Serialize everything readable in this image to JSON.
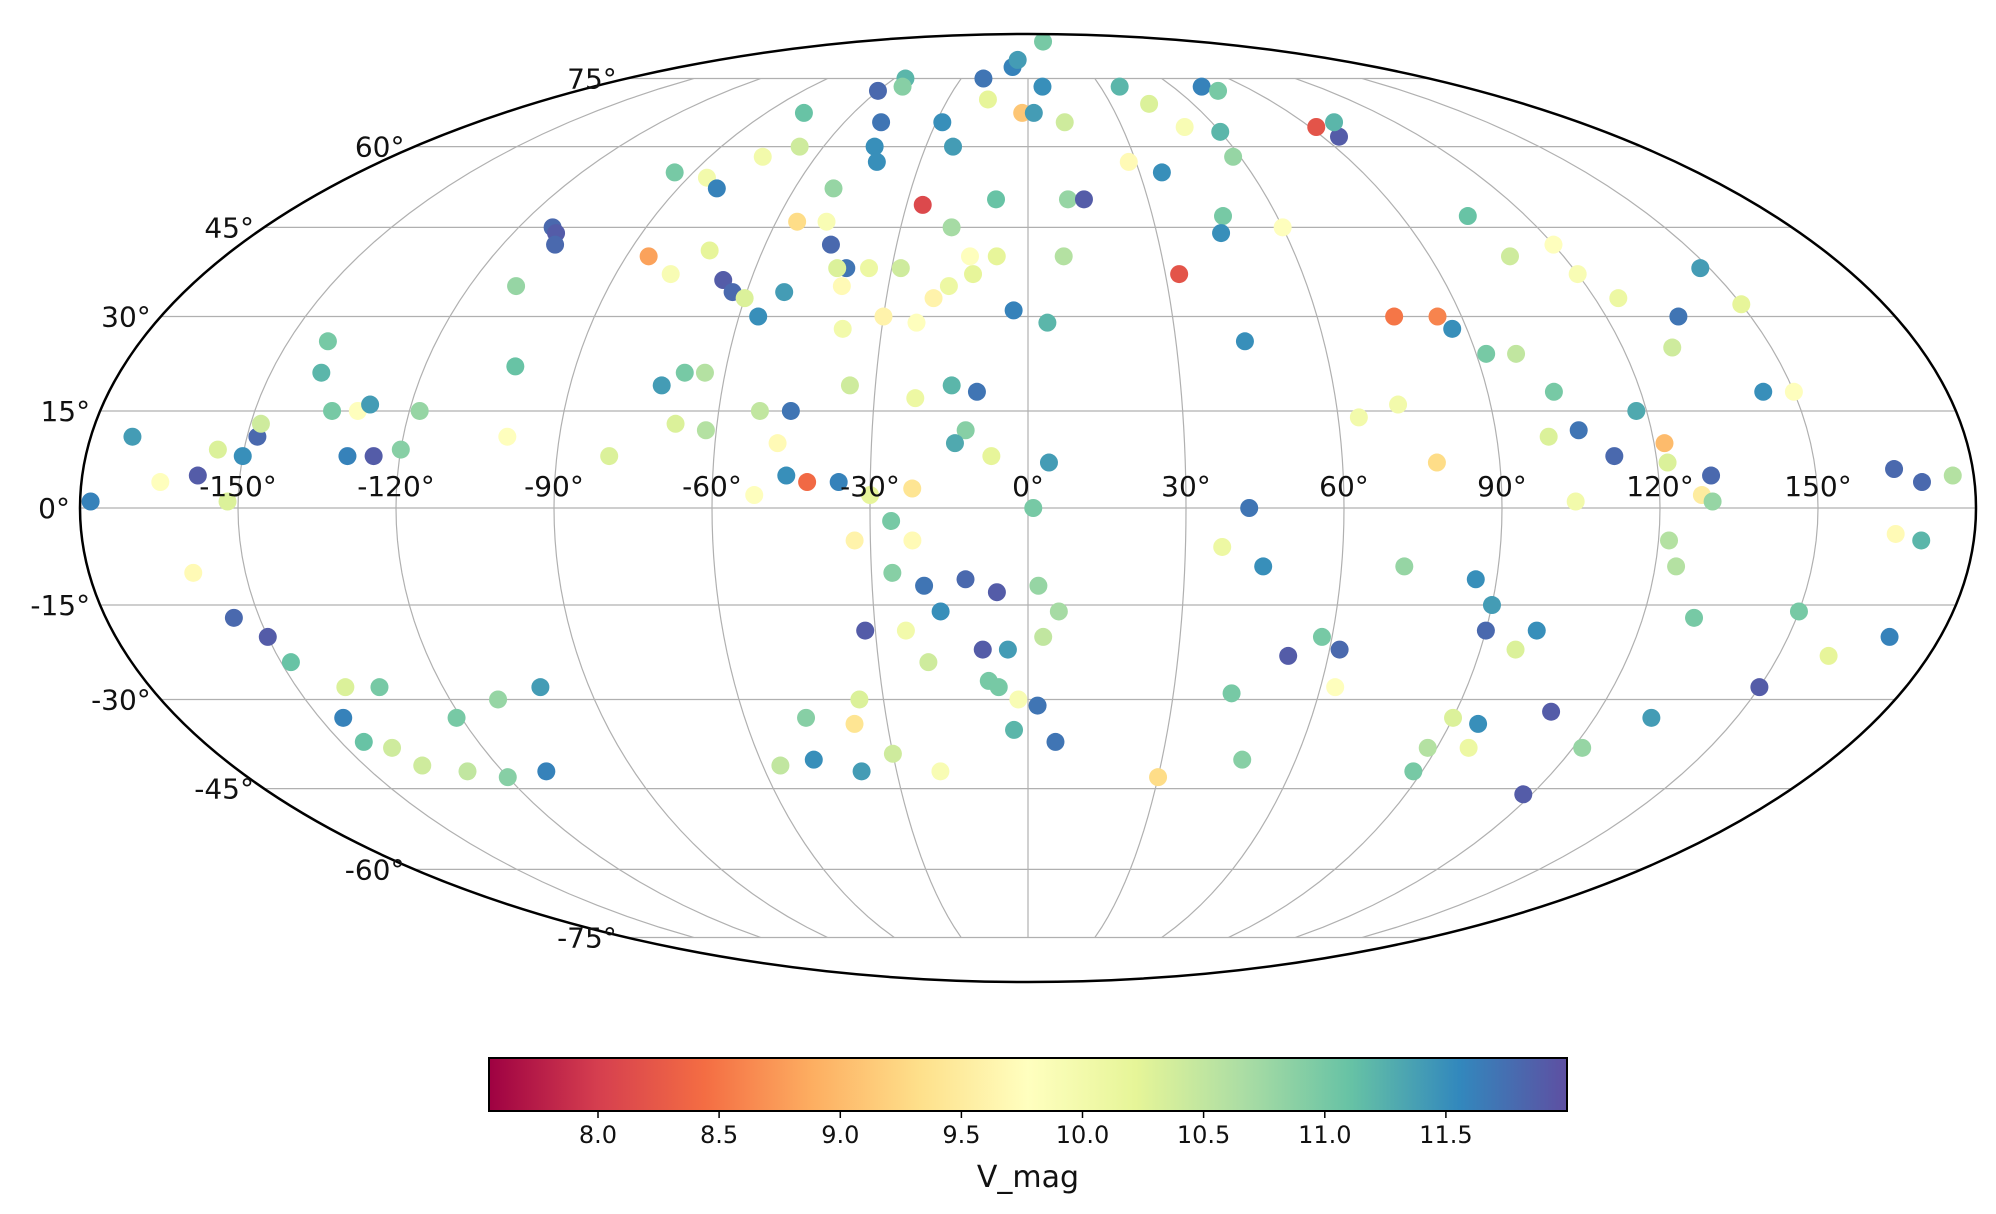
{
  "chart_data": {
    "type": "scatter",
    "projection": "mollweide",
    "title": "",
    "xlabel": "",
    "ylabel": "",
    "grid": true,
    "xlim": [
      -180,
      180
    ],
    "ylim": [
      -90,
      90
    ],
    "lon_tick_values": [
      -150,
      -120,
      -90,
      -60,
      -30,
      0,
      30,
      60,
      90,
      120,
      150
    ],
    "lon_tick_labels": [
      "-150°",
      "-120°",
      "-90°",
      "-60°",
      "-30°",
      "0°",
      "30°",
      "60°",
      "90°",
      "120°",
      "150°"
    ],
    "lat_tick_values": [
      75,
      60,
      45,
      30,
      15,
      0,
      -15,
      -30,
      -45,
      -60,
      -75
    ],
    "lat_tick_labels": [
      "75°",
      "60°",
      "45°",
      "30°",
      "15°",
      "0°",
      "-15°",
      "-30°",
      "-45°",
      "-60°",
      "-75°"
    ],
    "colormap": "Spectral",
    "colorbar": {
      "label": "V_mag",
      "range": [
        7.55,
        12.0
      ],
      "tick_values": [
        8.0,
        8.5,
        9.0,
        9.5,
        10.0,
        10.5,
        11.0,
        11.5
      ],
      "tick_labels": [
        "8.0",
        "8.5",
        "9.0",
        "9.5",
        "10.0",
        "10.5",
        "11.0",
        "11.5"
      ],
      "stops": [
        "#9e0142",
        "#d53e4f",
        "#f46d43",
        "#fdae61",
        "#fee08b",
        "#ffffbf",
        "#e6f598",
        "#abdda4",
        "#66c2a5",
        "#3288bd",
        "#5e4fa2"
      ]
    },
    "points": [
      [
        -178,
        1,
        11.6
      ],
      [
        -172,
        11,
        11.4
      ],
      [
        -165,
        4,
        9.8
      ],
      [
        -158,
        5,
        11.9
      ],
      [
        -152,
        1,
        10.3
      ],
      [
        -148,
        11,
        11.8
      ],
      [
        -142,
        26,
        11.0
      ],
      [
        -140,
        21,
        11.2
      ],
      [
        -135,
        15,
        11.0
      ],
      [
        -155,
        9,
        10.3
      ],
      [
        -150,
        8,
        11.5
      ],
      [
        -148,
        13,
        10.4
      ],
      [
        -130,
        8,
        11.6
      ],
      [
        -125,
        8,
        11.9
      ],
      [
        -120,
        9,
        10.9
      ],
      [
        -160,
        -10,
        9.7
      ],
      [
        -155,
        -17,
        11.8
      ],
      [
        -150,
        -20,
        11.9
      ],
      [
        -148,
        -24,
        11.1
      ],
      [
        -140,
        -28,
        10.3
      ],
      [
        -133,
        -28,
        11.0
      ],
      [
        -145,
        -33,
        11.6
      ],
      [
        -140,
        -38,
        10.4
      ],
      [
        -121,
        -33,
        11.0
      ],
      [
        -145,
        -37,
        11.1
      ],
      [
        -137,
        -41,
        10.4
      ],
      [
        -128,
        -42,
        10.5
      ],
      [
        -110,
        -30,
        10.8
      ],
      [
        -100,
        -28,
        11.4
      ],
      [
        -110,
        -42,
        11.6
      ],
      [
        -120,
        -43,
        10.9
      ],
      [
        -112,
        45,
        11.8
      ],
      [
        -110,
        44,
        11.9
      ],
      [
        -108,
        42,
        11.8
      ],
      [
        -110,
        35,
        10.8
      ],
      [
        -102,
        22,
        11.1
      ],
      [
        -100,
        11,
        9.8
      ],
      [
        -118,
        15,
        10.8
      ],
      [
        -130,
        15,
        9.8
      ],
      [
        -128,
        16,
        11.4
      ],
      [
        -95,
        55,
        11.0
      ],
      [
        -85,
        54,
        10.0
      ],
      [
        -80,
        52,
        11.6
      ],
      [
        -77,
        67,
        11.1
      ],
      [
        -75,
        58,
        10.0
      ],
      [
        -67,
        60,
        10.4
      ],
      [
        -85,
        40,
        8.8
      ],
      [
        -78,
        37,
        9.9
      ],
      [
        -72,
        41,
        10.2
      ],
      [
        -60,
        72,
        11.8
      ],
      [
        -55,
        75,
        11.2
      ],
      [
        -52,
        73,
        10.9
      ],
      [
        -48,
        65,
        11.7
      ],
      [
        -45,
        60,
        11.5
      ],
      [
        -42,
        57,
        11.5
      ],
      [
        -50,
        52,
        10.8
      ],
      [
        -55,
        46,
        9.3
      ],
      [
        -48,
        46,
        9.9
      ],
      [
        -66,
        36,
        11.9
      ],
      [
        -63,
        34,
        11.8
      ],
      [
        -60,
        33,
        10.3
      ],
      [
        -56,
        30,
        11.5
      ],
      [
        -52,
        34,
        11.4
      ],
      [
        -45,
        42,
        11.8
      ],
      [
        -40,
        38,
        11.7
      ],
      [
        -38,
        28,
        10.0
      ],
      [
        -35,
        19,
        10.4
      ],
      [
        -68,
        21,
        11.0
      ],
      [
        -64,
        21,
        10.6
      ],
      [
        -52,
        15,
        10.5
      ],
      [
        -48,
        10,
        9.7
      ],
      [
        -46,
        15,
        11.7
      ],
      [
        -72,
        19,
        11.4
      ],
      [
        -68,
        13,
        10.3
      ],
      [
        -62,
        12,
        10.6
      ],
      [
        -80,
        8,
        10.3
      ],
      [
        -52,
        2,
        9.8
      ],
      [
        -46,
        5,
        11.5
      ],
      [
        -42,
        4,
        8.4
      ],
      [
        -36,
        4,
        11.6
      ],
      [
        -30,
        2,
        10.2
      ],
      [
        -22,
        17,
        10.1
      ],
      [
        -22,
        3,
        9.4
      ],
      [
        -23,
        29,
        9.8
      ],
      [
        -42,
        38,
        10.3
      ],
      [
        -40,
        35,
        9.7
      ],
      [
        -35,
        38,
        10.1
      ],
      [
        -30,
        30,
        9.6
      ],
      [
        -26,
        49,
        8.1
      ],
      [
        -28,
        38,
        10.4
      ],
      [
        -20,
        33,
        9.6
      ],
      [
        -17,
        35,
        10.1
      ],
      [
        -12,
        37,
        10.2
      ],
      [
        -28,
        65,
        11.5
      ],
      [
        -22,
        60,
        11.4
      ],
      [
        -20,
        75,
        11.7
      ],
      [
        -15,
        70,
        10.2
      ],
      [
        -8,
        78,
        11.6
      ],
      [
        -6,
        80,
        11.4
      ],
      [
        -2,
        67,
        9.1
      ],
      [
        2,
        67,
        11.4
      ],
      [
        6,
        73,
        11.5
      ],
      [
        -8,
        50,
        11.1
      ],
      [
        -18,
        45,
        10.7
      ],
      [
        -13,
        40,
        9.8
      ],
      [
        -7,
        40,
        10.2
      ],
      [
        -3,
        31,
        11.6
      ],
      [
        4,
        29,
        11.2
      ],
      [
        8,
        40,
        10.6
      ],
      [
        10,
        50,
        10.8
      ],
      [
        14,
        50,
        11.9
      ],
      [
        -15,
        19,
        11.2
      ],
      [
        -10,
        18,
        11.7
      ],
      [
        -7,
        8,
        10.2
      ],
      [
        1,
        0,
        11.0
      ],
      [
        4,
        7,
        11.4
      ],
      [
        -12,
        12,
        10.9
      ],
      [
        -14,
        10,
        11.3
      ],
      [
        -26,
        -2,
        11.0
      ],
      [
        -22,
        -5,
        9.7
      ],
      [
        -33,
        -5,
        9.6
      ],
      [
        -26,
        -10,
        10.9
      ],
      [
        -20,
        -12,
        11.7
      ],
      [
        -12,
        -11,
        11.8
      ],
      [
        -6,
        -13,
        11.9
      ],
      [
        2,
        -12,
        10.8
      ],
      [
        3,
        -20,
        10.5
      ],
      [
        -32,
        -19,
        11.9
      ],
      [
        -17,
        -16,
        11.5
      ],
      [
        -9,
        -22,
        11.9
      ],
      [
        -4,
        -22,
        11.4
      ],
      [
        6,
        -16,
        10.7
      ],
      [
        -20,
        -24,
        10.4
      ],
      [
        -24,
        -19,
        10.0
      ],
      [
        -8,
        -27,
        11.0
      ],
      [
        -6,
        -28,
        11.0
      ],
      [
        -2,
        -30,
        9.9
      ],
      [
        2,
        -31,
        11.7
      ],
      [
        -3,
        -35,
        11.2
      ],
      [
        6,
        -37,
        11.7
      ],
      [
        -35,
        -30,
        10.3
      ],
      [
        -47,
        -33,
        10.9
      ],
      [
        -37,
        -34,
        9.4
      ],
      [
        -30,
        -39,
        10.4
      ],
      [
        -56,
        -41,
        10.5
      ],
      [
        -48,
        -40,
        11.5
      ],
      [
        -38,
        -42,
        11.4
      ],
      [
        -20,
        -42,
        9.9
      ],
      [
        30,
        -43,
        9.3
      ],
      [
        12,
        65,
        10.4
      ],
      [
        28,
        57,
        9.7
      ],
      [
        36,
        55,
        11.5
      ],
      [
        50,
        64,
        9.9
      ],
      [
        58,
        58,
        10.8
      ],
      [
        60,
        63,
        11.2
      ],
      [
        47,
        47,
        11.0
      ],
      [
        45,
        44,
        11.5
      ],
      [
        60,
        45,
        9.8
      ],
      [
        16,
        86,
        11.0
      ],
      [
        38,
        73,
        11.2
      ],
      [
        44,
        69,
        10.3
      ],
      [
        72,
        73,
        11.6
      ],
      [
        76,
        72,
        11.0
      ],
      [
        92,
        64,
        8.2
      ],
      [
        95,
        62,
        11.9
      ],
      [
        100,
        65,
        11.2
      ],
      [
        106,
        47,
        11.1
      ],
      [
        33,
        37,
        8.2
      ],
      [
        44,
        26,
        11.5
      ],
      [
        64,
        14,
        10.0
      ],
      [
        76,
        30,
        8.5
      ],
      [
        72,
        16,
        10.0
      ],
      [
        85,
        30,
        8.6
      ],
      [
        87,
        28,
        11.5
      ],
      [
        92,
        24,
        11.0
      ],
      [
        98,
        24,
        10.5
      ],
      [
        78,
        7,
        9.3
      ],
      [
        100,
        11,
        10.3
      ],
      [
        120,
        42,
        9.8
      ],
      [
        125,
        33,
        10.1
      ],
      [
        120,
        37,
        9.9
      ],
      [
        135,
        30,
        11.7
      ],
      [
        130,
        25,
        10.4
      ],
      [
        108,
        40,
        10.4
      ],
      [
        103,
        18,
        11.0
      ],
      [
        106,
        12,
        11.7
      ],
      [
        112,
        8,
        11.8
      ],
      [
        118,
        15,
        11.3
      ],
      [
        122,
        10,
        9.0
      ],
      [
        122,
        7,
        10.3
      ],
      [
        130,
        5,
        11.8
      ],
      [
        148,
        38,
        11.4
      ],
      [
        150,
        32,
        10.2
      ],
      [
        150,
        18,
        9.8
      ],
      [
        144,
        18,
        11.5
      ],
      [
        165,
        6,
        11.8
      ],
      [
        170,
        4,
        11.8
      ],
      [
        176,
        5,
        10.6
      ],
      [
        128,
        2,
        9.5
      ],
      [
        130,
        1,
        10.8
      ],
      [
        104,
        1,
        10.0
      ],
      [
        42,
        0,
        11.7
      ],
      [
        37,
        -6,
        10.1
      ],
      [
        45,
        -9,
        11.5
      ],
      [
        72,
        -9,
        10.8
      ],
      [
        86,
        -11,
        11.5
      ],
      [
        124,
        -9,
        10.6
      ],
      [
        122,
        -5,
        10.6
      ],
      [
        165,
        -4,
        9.7
      ],
      [
        170,
        -5,
        11.2
      ],
      [
        90,
        -15,
        11.4
      ],
      [
        90,
        -19,
        11.8
      ],
      [
        100,
        -19,
        11.5
      ],
      [
        130,
        -17,
        11.0
      ],
      [
        150,
        -16,
        11.0
      ],
      [
        160,
        -23,
        10.2
      ],
      [
        170,
        -20,
        11.6
      ],
      [
        97,
        -22,
        10.3
      ],
      [
        58,
        -20,
        11.0
      ],
      [
        52,
        -23,
        11.9
      ],
      [
        62,
        -22,
        11.8
      ],
      [
        42,
        -29,
        11.0
      ],
      [
        63,
        -28,
        9.8
      ],
      [
        90,
        -33,
        10.3
      ],
      [
        96,
        -34,
        11.5
      ],
      [
        110,
        -32,
        11.9
      ],
      [
        150,
        -28,
        11.9
      ],
      [
        97,
        -38,
        10.1
      ],
      [
        88,
        -38,
        10.6
      ],
      [
        88,
        -42,
        11.0
      ],
      [
        122,
        -38,
        10.8
      ],
      [
        132,
        -33,
        11.4
      ],
      [
        48,
        -40,
        10.9
      ],
      [
        118,
        -46,
        11.9
      ]
    ]
  }
}
